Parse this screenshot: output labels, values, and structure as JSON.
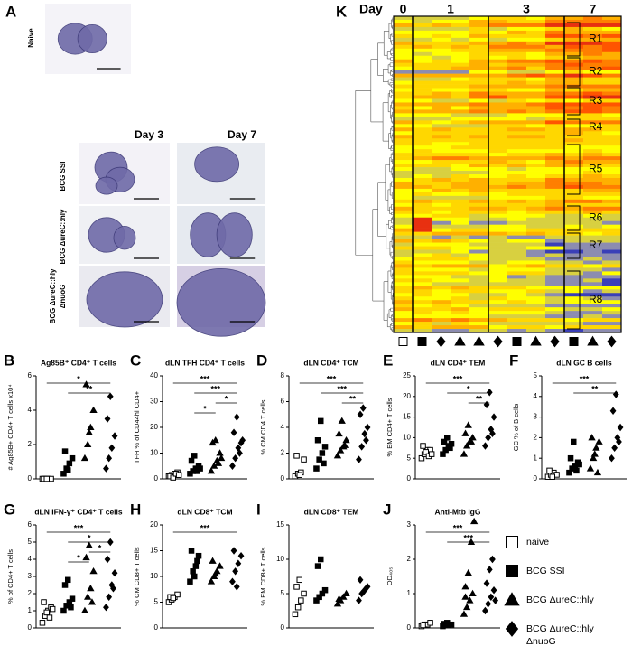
{
  "panel_a": {
    "letter": "A",
    "naive_label": "Naive",
    "col_labels": [
      "Day 3",
      "Day 7"
    ],
    "row_labels": [
      {
        "lines": [
          "BCG SSI"
        ]
      },
      {
        "lines": [
          "BCG ΔureC::hly"
        ]
      },
      {
        "lines": [
          "BCG ΔureC::hly",
          "ΔnuoG"
        ]
      }
    ]
  },
  "panels": [
    {
      "letter": "B",
      "title": "Ag85B⁺ CD4⁺ T cells",
      "ylabel": "# Ag85B+ CD4+ T cells x10⁴",
      "ylim": [
        0,
        6
      ],
      "yticks": [
        0,
        2,
        4,
        6
      ],
      "stars": [
        "*",
        "**"
      ],
      "groups": [
        [
          0,
          0,
          0,
          0,
          0,
          0
        ],
        [
          0.3,
          0.6,
          0.9,
          1.2,
          1.6,
          0.5
        ],
        [
          1.2,
          2,
          3,
          4,
          5.5,
          2.7
        ],
        [
          0.6,
          1.2,
          1.8,
          2.5,
          3.5,
          4.8
        ]
      ]
    },
    {
      "letter": "C",
      "title": "dLN TFH CD4⁺ T cells",
      "ylabel": "TFH % of CD44hi CD4+",
      "ylim": [
        0,
        40
      ],
      "yticks": [
        0,
        10,
        20,
        30,
        40
      ],
      "stars": [
        "***",
        "***",
        "*",
        "*"
      ],
      "groups": [
        [
          1,
          1.5,
          2,
          2.5,
          1,
          0.5,
          2,
          1.5
        ],
        [
          2,
          3,
          4,
          5,
          7,
          9,
          3,
          4
        ],
        [
          3,
          5,
          7,
          10,
          14,
          15,
          6,
          8
        ],
        [
          5,
          8,
          12,
          14,
          18,
          24,
          10,
          15
        ]
      ]
    },
    {
      "letter": "D",
      "title": "dLN CD4⁺ TCM",
      "ylabel": "% CM CD4 T cells",
      "ylim": [
        0,
        8
      ],
      "yticks": [
        0,
        2,
        4,
        6,
        8
      ],
      "stars": [
        "***",
        "***",
        "**"
      ],
      "groups": [
        [
          0.2,
          0.4,
          0.5,
          1.5,
          1.8,
          0.3
        ],
        [
          0.8,
          1.5,
          2,
          2.5,
          3,
          4.5,
          1.2
        ],
        [
          1.8,
          2.2,
          2.5,
          3,
          3.5,
          4.5,
          2.6
        ],
        [
          1.5,
          2.5,
          3.5,
          4,
          5,
          5.5,
          3
        ]
      ]
    },
    {
      "letter": "E",
      "title": "dLN CD4⁺ TEM",
      "ylabel": "% EM CD4+ T cells",
      "ylim": [
        0,
        25
      ],
      "yticks": [
        0,
        5,
        10,
        15,
        20,
        25
      ],
      "stars": [
        "***",
        "*",
        "**"
      ],
      "groups": [
        [
          5,
          6,
          7,
          7,
          8,
          6.5,
          5.5,
          6
        ],
        [
          6,
          7,
          8,
          8.5,
          9,
          10,
          7.5
        ],
        [
          6,
          8,
          9,
          10,
          11,
          13,
          9
        ],
        [
          8,
          10,
          12,
          15,
          18,
          21,
          11
        ]
      ]
    },
    {
      "letter": "F",
      "title": "dLN GC B cells",
      "ylabel": "GC % of B cells",
      "ylim": [
        0,
        5
      ],
      "yticks": [
        0,
        1,
        2,
        3,
        4,
        5
      ],
      "stars": [
        "***",
        "**"
      ],
      "groups": [
        [
          0.1,
          0.2,
          0.3,
          0.2,
          0.4,
          0.1
        ],
        [
          0.3,
          0.5,
          0.6,
          0.8,
          1,
          1.8,
          0.4,
          0.7
        ],
        [
          0.5,
          1,
          1.5,
          1.8,
          2,
          1.2,
          0.3
        ],
        [
          1,
          1.5,
          2,
          2.5,
          3.3,
          4.1,
          1.8
        ]
      ]
    },
    {
      "letter": "G",
      "title": "dLN IFN-γ⁺ CD4⁺ T cells",
      "ylabel": "% of CD4+ T cells",
      "ylim": [
        0,
        6
      ],
      "yticks": [
        0,
        1,
        2,
        3,
        4,
        5,
        6
      ],
      "stars": [
        "***",
        "*",
        "*",
        "*"
      ],
      "groups": [
        [
          0.3,
          0.7,
          1,
          1.2,
          1.5,
          0.9,
          0.6,
          1.1
        ],
        [
          1,
          1.3,
          1.5,
          1.7,
          2.5,
          2.8,
          1.2
        ],
        [
          1,
          1.8,
          2.3,
          3.3,
          4.1,
          4.8,
          1.5
        ],
        [
          1.2,
          1.8,
          2.5,
          3.2,
          4,
          5,
          2.3
        ]
      ]
    },
    {
      "letter": "H",
      "title": "dLN CD8⁺ TCM",
      "ylabel": "% CM CD8+ T cells",
      "ylim": [
        0,
        20
      ],
      "yticks": [
        0,
        5,
        10,
        15,
        20
      ],
      "stars": [
        "***"
      ],
      "groups": [
        [
          5,
          5.5,
          6,
          6.5,
          6,
          5.8
        ],
        [
          9,
          11,
          12,
          14,
          15,
          10,
          13
        ],
        [
          9,
          10,
          11,
          12,
          13,
          10.5
        ],
        [
          9,
          11,
          12.5,
          14,
          15,
          8
        ]
      ]
    },
    {
      "letter": "I",
      "title": "dLN CD8⁺ TEM",
      "ylabel": "% EM CD8+ T cells",
      "ylim": [
        0,
        15
      ],
      "yticks": [
        0,
        5,
        10,
        15
      ],
      "stars": [],
      "groups": [
        [
          2,
          3,
          4,
          5,
          6,
          7
        ],
        [
          4,
          4.5,
          5,
          5.5,
          9,
          10
        ],
        [
          3.5,
          4,
          4.5,
          5,
          4.2
        ],
        [
          4,
          5,
          5.5,
          6,
          7,
          5.2
        ]
      ]
    },
    {
      "letter": "J",
      "title": "Anti-Mtb IgG",
      "ylabel": "OD₄₀₅",
      "ylim": [
        0,
        3
      ],
      "yticks": [
        0,
        1,
        2,
        3
      ],
      "stars": [
        "***",
        "***"
      ],
      "groups": [
        [
          0.05,
          0.1,
          0.1,
          0.15,
          0.08
        ],
        [
          0.05,
          0.08,
          0.1,
          0.1,
          0.12,
          0.15
        ],
        [
          0.4,
          0.6,
          0.8,
          1,
          1.2,
          1.6,
          2.5,
          3.1,
          0.9
        ],
        [
          0.5,
          0.7,
          0.9,
          1.1,
          1.3,
          1.7,
          2.0,
          0.8
        ]
      ]
    }
  ],
  "legend": [
    {
      "lines": [
        "naive"
      ]
    },
    {
      "lines": [
        "BCG SSI"
      ]
    },
    {
      "lines": [
        "BCG ΔureC::hly"
      ]
    },
    {
      "lines": [
        "BCG ΔureC::hly",
        "ΔnuoG"
      ]
    }
  ],
  "heatmap": {
    "letter": "K",
    "day_title": "Day",
    "days": [
      "0",
      "1",
      "3",
      "7"
    ],
    "regions": [
      "R1",
      "R2",
      "R3",
      "R4",
      "R5",
      "R6",
      "R7",
      "R8"
    ]
  }
}
